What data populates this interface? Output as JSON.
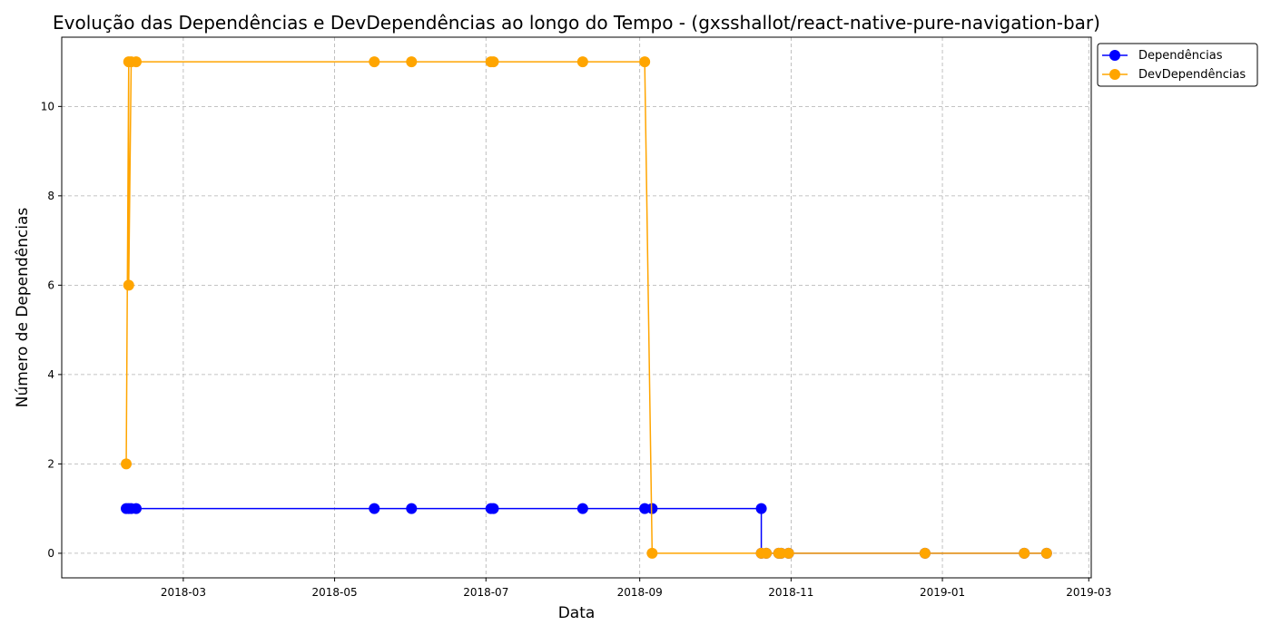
{
  "chart_data": {
    "type": "line",
    "title": "Evolução das Dependências e DevDependências ao longo do Tempo - (gxsshallot/react-native-pure-navigation-bar)",
    "xlabel": "Data",
    "ylabel": "Número de Dependências",
    "xlim": [
      "2018-01-11",
      "2019-03-02"
    ],
    "ylim": [
      -0.55,
      11.55
    ],
    "x_ticks": [
      "2018-03",
      "2018-05",
      "2018-07",
      "2018-09",
      "2018-11",
      "2019-01",
      "2019-03"
    ],
    "y_ticks": [
      0,
      2,
      4,
      6,
      8,
      10
    ],
    "grid": true,
    "legend": "top-right",
    "series": [
      {
        "name": "Dependências",
        "color": "#0000ff",
        "points": [
          [
            "2018-02-06",
            1
          ],
          [
            "2018-02-07",
            1
          ],
          [
            "2018-02-08",
            1
          ],
          [
            "2018-02-10",
            1
          ],
          [
            "2018-05-17",
            1
          ],
          [
            "2018-06-01",
            1
          ],
          [
            "2018-07-03",
            1
          ],
          [
            "2018-07-04",
            1
          ],
          [
            "2018-08-09",
            1
          ],
          [
            "2018-09-03",
            1
          ],
          [
            "2018-09-06",
            1
          ],
          [
            "2018-10-20",
            1
          ],
          [
            "2018-10-20",
            0
          ],
          [
            "2018-10-22",
            0
          ],
          [
            "2018-10-27",
            0
          ],
          [
            "2018-10-28",
            0
          ],
          [
            "2018-10-31",
            0
          ],
          [
            "2018-12-25",
            0
          ],
          [
            "2019-02-03",
            0
          ],
          [
            "2019-02-12",
            0
          ]
        ]
      },
      {
        "name": "DevDependências",
        "color": "#ffa500",
        "points": [
          [
            "2018-02-06",
            2
          ],
          [
            "2018-02-07",
            11
          ],
          [
            "2018-02-07",
            6
          ],
          [
            "2018-02-08",
            11
          ],
          [
            "2018-02-10",
            11
          ],
          [
            "2018-05-17",
            11
          ],
          [
            "2018-06-01",
            11
          ],
          [
            "2018-07-03",
            11
          ],
          [
            "2018-07-04",
            11
          ],
          [
            "2018-08-09",
            11
          ],
          [
            "2018-09-03",
            11
          ],
          [
            "2018-09-06",
            0
          ],
          [
            "2018-10-20",
            0
          ],
          [
            "2018-10-22",
            0
          ],
          [
            "2018-10-27",
            0
          ],
          [
            "2018-10-28",
            0
          ],
          [
            "2018-10-31",
            0
          ],
          [
            "2018-12-25",
            0
          ],
          [
            "2019-02-03",
            0
          ],
          [
            "2019-02-12",
            0
          ]
        ]
      }
    ]
  }
}
